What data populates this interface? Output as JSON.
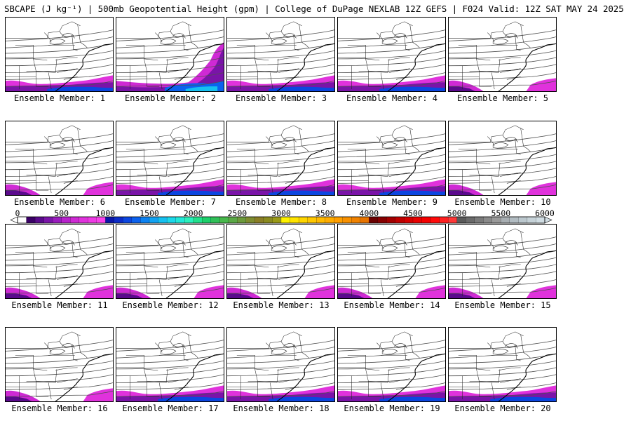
{
  "header": {
    "title": "SBCAPE (J kg⁻¹) | 500mb Geopotential Height (gpm) | College of DuPage NEXLAB 12Z GEFS | F024 Valid: 12Z SAT MAY 24 2025"
  },
  "members": [
    {
      "label": "Ensemble Member: 1",
      "cape": "moderate"
    },
    {
      "label": "Ensemble Member: 2",
      "cape": "high-east"
    },
    {
      "label": "Ensemble Member: 3",
      "cape": "moderate"
    },
    {
      "label": "Ensemble Member: 4",
      "cape": "moderate"
    },
    {
      "label": "Ensemble Member: 5",
      "cape": "low"
    },
    {
      "label": "Ensemble Member: 6",
      "cape": "low"
    },
    {
      "label": "Ensemble Member: 7",
      "cape": "moderate"
    },
    {
      "label": "Ensemble Member: 8",
      "cape": "moderate"
    },
    {
      "label": "Ensemble Member: 9",
      "cape": "moderate"
    },
    {
      "label": "Ensemble Member: 10",
      "cape": "low"
    },
    {
      "label": "Ensemble Member: 11",
      "cape": "low"
    },
    {
      "label": "Ensemble Member: 12",
      "cape": "low"
    },
    {
      "label": "Ensemble Member: 13",
      "cape": "low"
    },
    {
      "label": "Ensemble Member: 14",
      "cape": "low"
    },
    {
      "label": "Ensemble Member: 15",
      "cape": "low"
    },
    {
      "label": "Ensemble Member: 16",
      "cape": "low"
    },
    {
      "label": "Ensemble Member: 17",
      "cape": "moderate"
    },
    {
      "label": "Ensemble Member: 18",
      "cape": "moderate"
    },
    {
      "label": "Ensemble Member: 19",
      "cape": "moderate"
    },
    {
      "label": "Ensemble Member: 20",
      "cape": "moderate"
    }
  ],
  "colorbar": {
    "labels": [
      "0",
      "500",
      "1000",
      "1500",
      "2000",
      "2500",
      "3000",
      "3500",
      "4000",
      "4500",
      "5000",
      "5500",
      "6000"
    ],
    "min": 0,
    "max": 6000,
    "colors": [
      "#ffffff",
      "#3a0066",
      "#5a0a8c",
      "#7a14a8",
      "#9a1cbe",
      "#b822cc",
      "#cf2ad4",
      "#e032dc",
      "#ee3ae4",
      "#f842ea",
      "#0a16a8",
      "#0c2cc8",
      "#0c46e0",
      "#0c62ee",
      "#0c82f2",
      "#12a2f2",
      "#16c0f0",
      "#1cd8ea",
      "#22e8d8",
      "#2af0bc",
      "#22e08c",
      "#1cd06a",
      "#30c058",
      "#48b84c",
      "#5aa846",
      "#6c9a3c",
      "#7e8c30",
      "#8a7e26",
      "#8a8a20",
      "#9a9a18",
      "#fff200",
      "#ffe400",
      "#ffd600",
      "#ffc800",
      "#ffba00",
      "#ffac00",
      "#ff9e00",
      "#f89000",
      "#f08200",
      "#e87400",
      "#6a0000",
      "#860000",
      "#a20000",
      "#be0000",
      "#d40000",
      "#e80000",
      "#f40000",
      "#ff0a0a",
      "#ff2020",
      "#ff3838",
      "#5a5a5a",
      "#6a6a6a",
      "#7a7a7a",
      "#8a8a8a",
      "#9a9a9a",
      "#a8aeb2",
      "#b2bcc2",
      "#bcc8ce",
      "#c6d2d8",
      "#d0dce2"
    ]
  }
}
